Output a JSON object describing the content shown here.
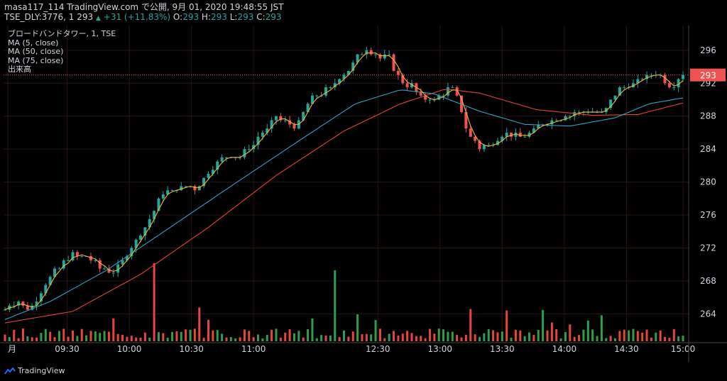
{
  "header": {
    "line1": "masa117_114 TradingView.com で公開, 9月 01, 2020 19:48:55 JST",
    "symbol_info": "TSE_DLY:3776, 1",
    "last_price": "293",
    "change": "+31 (+11.83%)",
    "o_label": "O:",
    "o_value": "293",
    "h_label": "H:",
    "h_value": "293",
    "l_label": "L:",
    "l_value": "293",
    "c_label": "C:",
    "c_value": "293"
  },
  "legend": {
    "items": [
      "ブロードバンドタワー, 1, TSE",
      "MA (5, close)",
      "MA (50, close)",
      "MA (75, close)",
      "出来高"
    ]
  },
  "price_label": "293",
  "brand": {
    "name": "TradingView",
    "icon": "tradingview-logo-icon"
  },
  "colors": {
    "up": "#26a69a",
    "down": "#ef5350",
    "vol_up": "#2e9e4e",
    "vol_down": "#e8453c",
    "ma5": "#f2b233",
    "ma50": "#2aa6c7",
    "ma75": "#e0443a",
    "grid": "#2a1414",
    "price_line": "#ef5350",
    "axis_text": "#d1d4dc"
  },
  "chart_data": {
    "type": "candlestick",
    "title": "ブロードバンドタワー, 1, TSE",
    "x_ticks": [
      "月",
      "09:30",
      "10:00",
      "10:30",
      "11:00",
      "12:30",
      "13:00",
      "13:30",
      "14:00",
      "14:30",
      "15:00"
    ],
    "y_ticks": [
      264,
      268,
      272,
      276,
      280,
      284,
      288,
      292,
      296
    ],
    "ylim": [
      260.5,
      299
    ],
    "current_price": 293,
    "series": [
      {
        "name": "MA (5, close)"
      },
      {
        "name": "MA (50, close)"
      },
      {
        "name": "MA (75, close)"
      },
      {
        "name": "出来高"
      }
    ],
    "ma50_keypoints": [
      [
        0,
        263.3
      ],
      [
        40,
        265.5
      ],
      [
        90,
        269.3
      ],
      [
        130,
        273
      ],
      [
        200,
        279.5
      ],
      [
        260,
        285
      ],
      [
        310,
        289.5
      ],
      [
        350,
        291.2
      ],
      [
        380,
        290.7
      ],
      [
        420,
        288.6
      ],
      [
        460,
        287
      ],
      [
        500,
        286.8
      ],
      [
        540,
        287.8
      ],
      [
        570,
        289.5
      ],
      [
        599,
        290.2
      ]
    ],
    "ma75_keypoints": [
      [
        0,
        262.9
      ],
      [
        60,
        264.3
      ],
      [
        120,
        268.8
      ],
      [
        180,
        274.5
      ],
      [
        240,
        280.8
      ],
      [
        300,
        286.2
      ],
      [
        350,
        289.5
      ],
      [
        390,
        291.3
      ],
      [
        420,
        290.8
      ],
      [
        470,
        288.8
      ],
      [
        520,
        288.1
      ],
      [
        560,
        288.2
      ],
      [
        600,
        289.6
      ]
    ],
    "close_keypoints": [
      [
        0,
        264.5
      ],
      [
        10,
        265.6
      ],
      [
        22,
        264.6
      ],
      [
        40,
        268.4
      ],
      [
        60,
        271.3
      ],
      [
        70,
        271
      ],
      [
        90,
        269.2
      ],
      [
        100,
        269.5
      ],
      [
        122,
        274.3
      ],
      [
        140,
        278.5
      ],
      [
        160,
        279.5
      ],
      [
        170,
        279.3
      ],
      [
        190,
        282.9
      ],
      [
        210,
        283.2
      ],
      [
        240,
        287.8
      ],
      [
        258,
        286.5
      ],
      [
        270,
        290
      ],
      [
        290,
        291.5
      ],
      [
        305,
        294
      ],
      [
        320,
        296.3
      ],
      [
        330,
        295.2
      ],
      [
        340,
        295
      ],
      [
        350,
        292.3
      ],
      [
        360,
        291.6
      ],
      [
        370,
        290
      ],
      [
        380,
        290
      ],
      [
        395,
        291.6
      ],
      [
        402,
        289.8
      ],
      [
        410,
        285.8
      ],
      [
        420,
        284.3
      ],
      [
        430,
        284.3
      ],
      [
        440,
        285.8
      ],
      [
        455,
        285.4
      ],
      [
        470,
        286.6
      ],
      [
        490,
        287.8
      ],
      [
        510,
        288.6
      ],
      [
        530,
        288.5
      ],
      [
        545,
        291.5
      ],
      [
        560,
        292.2
      ],
      [
        570,
        293
      ],
      [
        580,
        293
      ],
      [
        590,
        291.6
      ],
      [
        600,
        293
      ]
    ]
  }
}
